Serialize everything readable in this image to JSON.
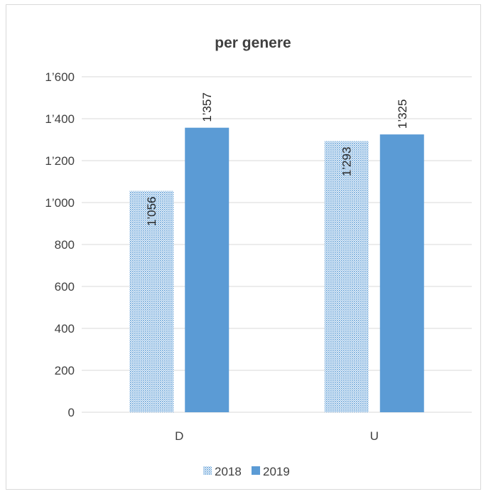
{
  "chart_data": {
    "type": "bar",
    "title": "per genere",
    "categories": [
      "D",
      "U"
    ],
    "series": [
      {
        "name": "2018",
        "values": [
          1056,
          1293
        ],
        "labels": [
          "1’056",
          "1’293"
        ],
        "pattern": "dotted",
        "color": "#5b9bd5"
      },
      {
        "name": "2019",
        "values": [
          1357,
          1325
        ],
        "labels": [
          "1’357",
          "1’325"
        ],
        "pattern": "solid",
        "color": "#5b9bd5"
      }
    ],
    "ylim": [
      0,
      1600
    ],
    "yticks": [
      0,
      200,
      400,
      600,
      800,
      1000,
      1200,
      1400,
      1600
    ],
    "ytick_labels": [
      "0",
      "200",
      "400",
      "600",
      "800",
      "1’000",
      "1’200",
      "1’400",
      "1’600"
    ],
    "grid": true,
    "legend_position": "bottom",
    "xlabel": "",
    "ylabel": ""
  }
}
